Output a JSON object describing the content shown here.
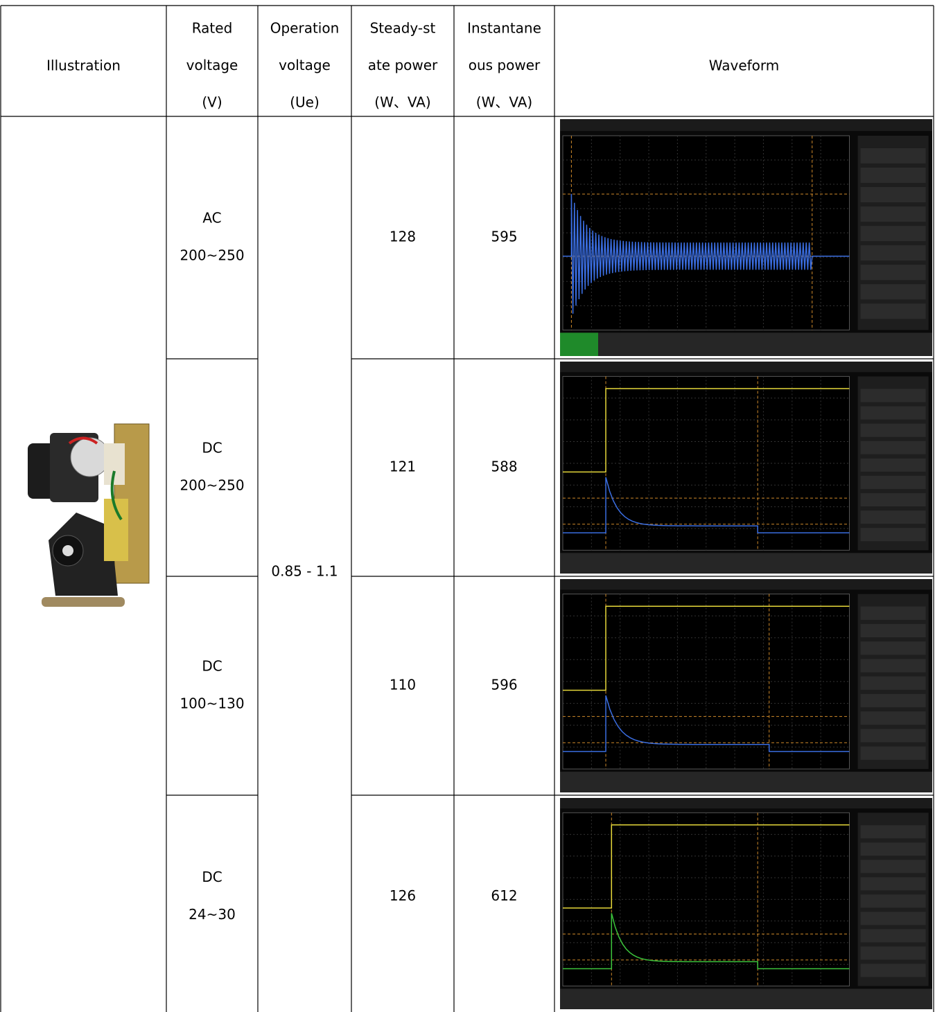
{
  "table": {
    "header": [
      [
        "Illustration"
      ],
      [
        "Rated",
        "voltage",
        "(V)"
      ],
      [
        "Operation",
        "voltage",
        "(Ue)"
      ],
      [
        "Steady-st",
        "ate power",
        "(W、VA)"
      ],
      [
        "Instantane",
        "ous power",
        "(W、VA)"
      ],
      [
        "Waveform"
      ]
    ],
    "operation_voltage": "0.85 - 1.1",
    "rows": [
      {
        "rated_voltage": [
          "AC",
          "200~250"
        ],
        "steady_state_power": 128,
        "instantaneous_power": 595
      },
      {
        "rated_voltage": [
          "DC",
          "200~250"
        ],
        "steady_state_power": 121,
        "instantaneous_power": 588
      },
      {
        "rated_voltage": [
          "DC",
          "100~130"
        ],
        "steady_state_power": 110,
        "instantaneous_power": 596
      },
      {
        "rated_voltage": [
          "DC",
          "24~30"
        ],
        "steady_state_power": 126,
        "instantaneous_power": 612
      }
    ]
  }
}
